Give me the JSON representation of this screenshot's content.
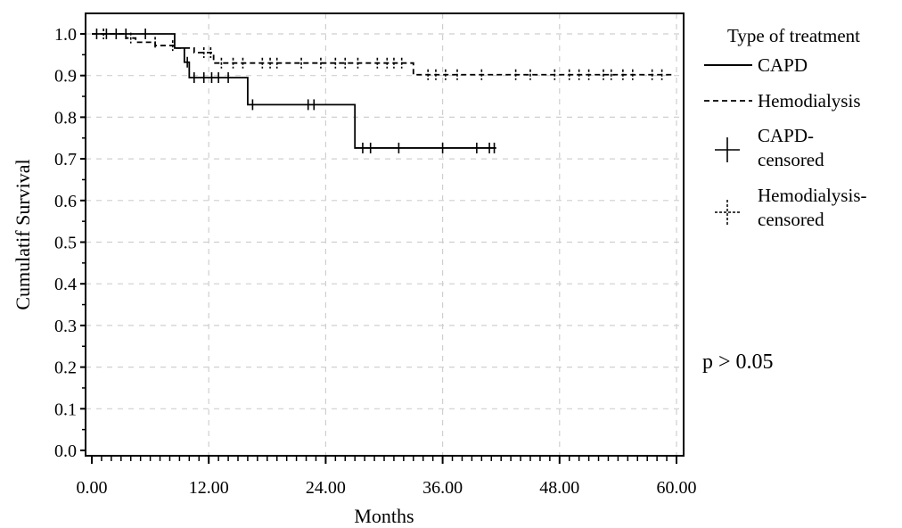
{
  "chart_data": {
    "type": "line",
    "title": "",
    "xlabel": "Months",
    "ylabel": "Cumulatif Survival",
    "xlim": [
      0,
      60
    ],
    "ylim": [
      0,
      1
    ],
    "x_ticks": [
      "0.00",
      "12.00",
      "24.00",
      "36.00",
      "48.00",
      "60.00"
    ],
    "y_ticks": [
      "0.0",
      "0.1",
      "0.2",
      "0.3",
      "0.4",
      "0.5",
      "0.6",
      "0.7",
      "0.8",
      "0.9",
      "1.0"
    ],
    "grid": true,
    "legend_position": "right",
    "legend_title": "Type of treatment",
    "legend_entries": [
      "CAPD",
      "Hemodialysis",
      "CAPD-\ncensored",
      "Hemodialysis-\ncensored"
    ],
    "annotation": "p > 0.05",
    "series": [
      {
        "name": "CAPD",
        "style": "solid",
        "steps": [
          [
            0,
            1.0
          ],
          [
            8.5,
            0.966
          ],
          [
            9.5,
            0.932
          ],
          [
            10,
            0.895
          ],
          [
            16,
            0.83
          ],
          [
            27,
            0.726
          ],
          [
            41.5,
            0.726
          ]
        ],
        "censored": [
          [
            0.5,
            1.0
          ],
          [
            1.5,
            1.0
          ],
          [
            2.5,
            1.0
          ],
          [
            3.5,
            1.0
          ],
          [
            5.5,
            1.0
          ],
          [
            9.8,
            0.932
          ],
          [
            10.5,
            0.895
          ],
          [
            11.5,
            0.895
          ],
          [
            12.3,
            0.895
          ],
          [
            13,
            0.895
          ],
          [
            14,
            0.895
          ],
          [
            16.5,
            0.83
          ],
          [
            22.2,
            0.83
          ],
          [
            22.8,
            0.83
          ],
          [
            27.8,
            0.726
          ],
          [
            28.6,
            0.726
          ],
          [
            31.5,
            0.726
          ],
          [
            36,
            0.726
          ],
          [
            39.5,
            0.726
          ],
          [
            40.8,
            0.726
          ],
          [
            41.3,
            0.726
          ]
        ]
      },
      {
        "name": "Hemodialysis",
        "style": "dashed",
        "steps": [
          [
            0,
            1.0
          ],
          [
            3.5,
            0.99
          ],
          [
            4.5,
            0.98
          ],
          [
            6.5,
            0.972
          ],
          [
            8.5,
            0.966
          ],
          [
            10.5,
            0.955
          ],
          [
            12.5,
            0.93
          ],
          [
            33,
            0.902
          ],
          [
            59.5,
            0.902
          ]
        ],
        "censored": [
          [
            1.2,
            1.0
          ],
          [
            4,
            0.99
          ],
          [
            6.5,
            0.98
          ],
          [
            8.3,
            0.972
          ],
          [
            11.5,
            0.955
          ],
          [
            12.2,
            0.955
          ],
          [
            13.3,
            0.93
          ],
          [
            14.5,
            0.93
          ],
          [
            15.5,
            0.93
          ],
          [
            17.5,
            0.93
          ],
          [
            18.3,
            0.93
          ],
          [
            19,
            0.93
          ],
          [
            21.5,
            0.93
          ],
          [
            23.5,
            0.93
          ],
          [
            25,
            0.93
          ],
          [
            26,
            0.93
          ],
          [
            27.3,
            0.93
          ],
          [
            29.3,
            0.93
          ],
          [
            30.3,
            0.93
          ],
          [
            31,
            0.93
          ],
          [
            31.8,
            0.93
          ],
          [
            34.5,
            0.902
          ],
          [
            35.3,
            0.902
          ],
          [
            36.3,
            0.902
          ],
          [
            37.5,
            0.902
          ],
          [
            40,
            0.902
          ],
          [
            43.5,
            0.902
          ],
          [
            45,
            0.902
          ],
          [
            47.5,
            0.902
          ],
          [
            49,
            0.902
          ],
          [
            50,
            0.902
          ],
          [
            51,
            0.902
          ],
          [
            52.5,
            0.902
          ],
          [
            53.3,
            0.902
          ],
          [
            54.5,
            0.902
          ],
          [
            55.5,
            0.902
          ],
          [
            57.5,
            0.902
          ],
          [
            58.5,
            0.902
          ]
        ]
      }
    ]
  }
}
